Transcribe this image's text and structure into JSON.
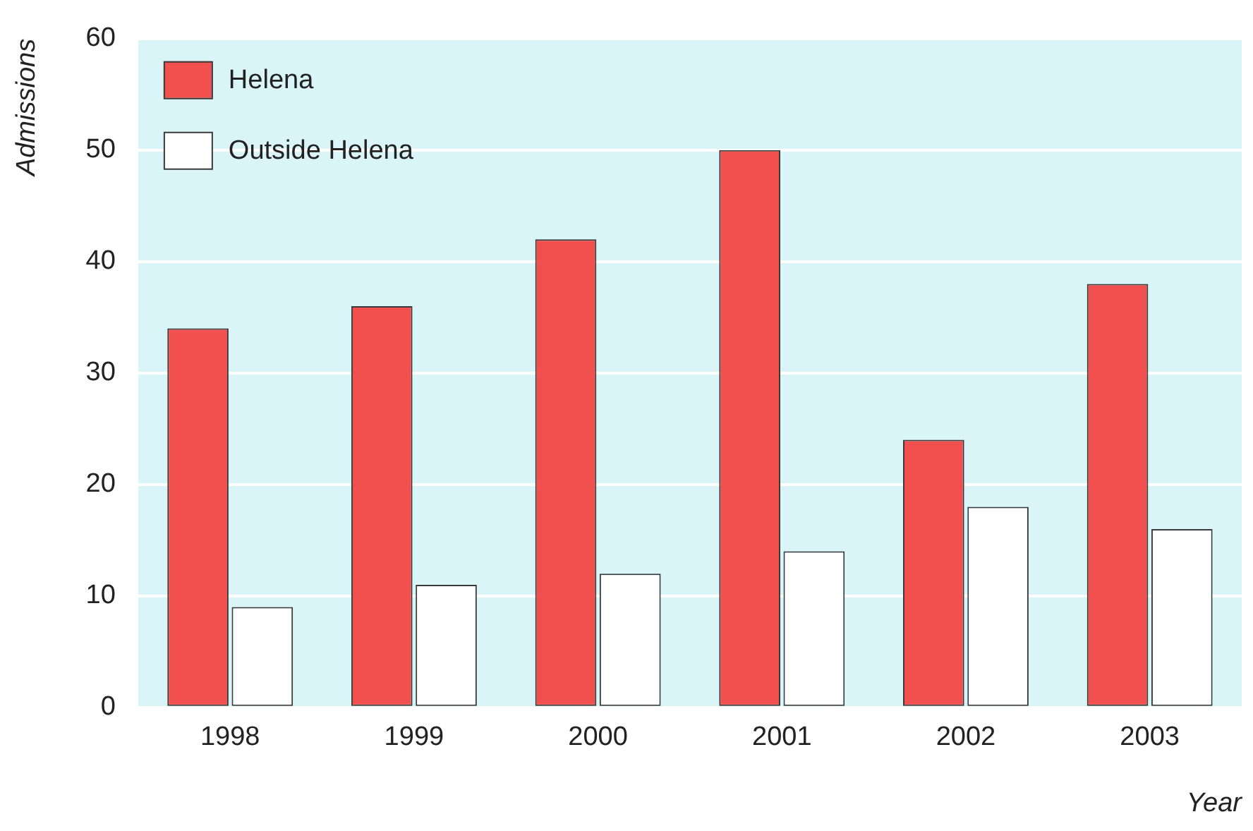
{
  "chart_data": {
    "type": "bar",
    "xlabel": "Year",
    "ylabel": "Admissions",
    "categories": [
      "1998",
      "1999",
      "2000",
      "2001",
      "2002",
      "2003"
    ],
    "series": [
      {
        "name": "Helena",
        "color": "#f24f4f",
        "values": [
          34,
          36,
          42,
          50,
          24,
          38
        ]
      },
      {
        "name": "Outside Helena",
        "color": "#ffffff",
        "values": [
          9,
          11,
          12,
          14,
          18,
          16
        ]
      }
    ],
    "ylim": [
      0,
      60
    ],
    "yticks": [
      0,
      10,
      20,
      30,
      40,
      50,
      60
    ],
    "grid": "y",
    "legend": "top left"
  }
}
